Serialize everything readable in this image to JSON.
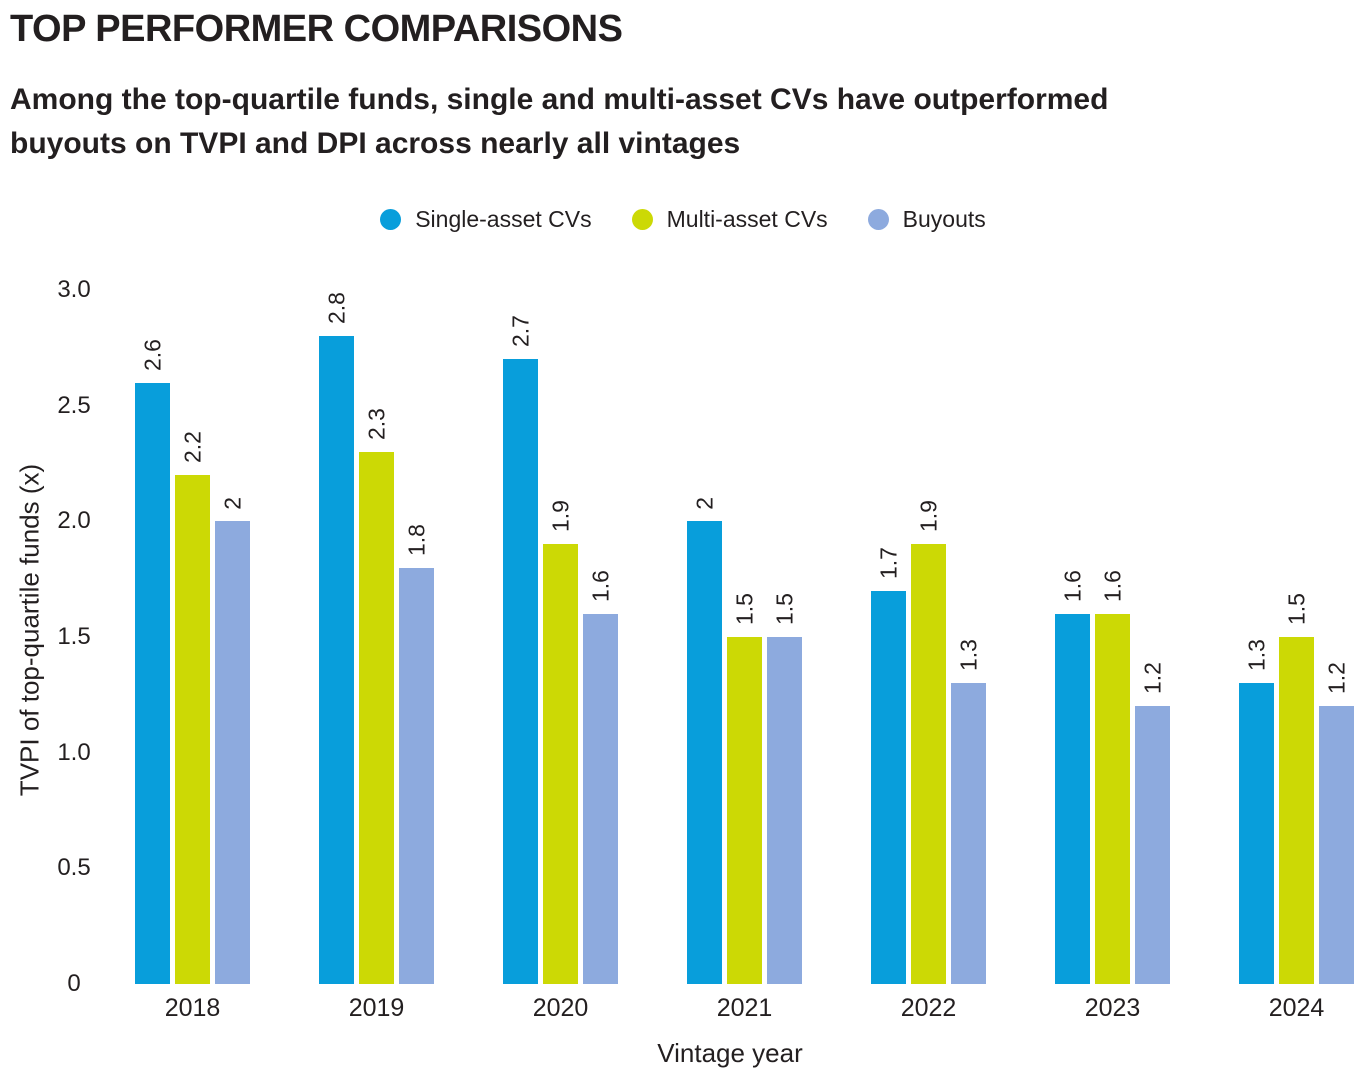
{
  "header": {
    "title": "TOP PERFORMER COMPARISONS",
    "subtitle_lines": [
      "Among the top-quartile funds, single and multi-asset CVs have outperformed",
      "buyouts on TVPI and DPI across nearly all vintages"
    ]
  },
  "colors": {
    "single_asset_cvs": "#089edb",
    "multi_asset_cvs": "#ccd905",
    "buyouts": "#8daade",
    "text": "#231f20",
    "background": "#ffffff"
  },
  "chart_data": {
    "type": "bar",
    "title": "TOP PERFORMER COMPARISONS",
    "subtitle": "Among the top-quartile funds, single and multi-asset CVs have outperformed buyouts on TVPI and DPI across nearly all vintages",
    "categories": [
      "2018",
      "2019",
      "2020",
      "2021",
      "2022",
      "2023",
      "2024"
    ],
    "series": [
      {
        "name": "Single-asset CVs",
        "color": "#089edb",
        "values": [
          2.6,
          2.8,
          2.7,
          2,
          1.7,
          1.6,
          1.3
        ]
      },
      {
        "name": "Multi-asset CVs",
        "color": "#ccd905",
        "values": [
          2.2,
          2.3,
          1.9,
          1.5,
          1.9,
          1.6,
          1.5
        ]
      },
      {
        "name": "Buyouts",
        "color": "#8daade",
        "values": [
          2,
          1.8,
          1.6,
          1.5,
          1.3,
          1.2,
          1.2
        ]
      }
    ],
    "xlabel": "Vintage year",
    "ylabel": "TVPI of top-quartile funds (x)",
    "ylim": [
      0,
      3.0
    ],
    "yticks": [
      0,
      0.5,
      1.0,
      1.5,
      2.0,
      2.5,
      3.0
    ],
    "ytick_labels": [
      "0",
      "0.5",
      "1.0",
      "1.5",
      "2.0",
      "2.5",
      "3.0"
    ],
    "grid": false,
    "legend_position": "top",
    "bar_label_rotation": 90
  }
}
